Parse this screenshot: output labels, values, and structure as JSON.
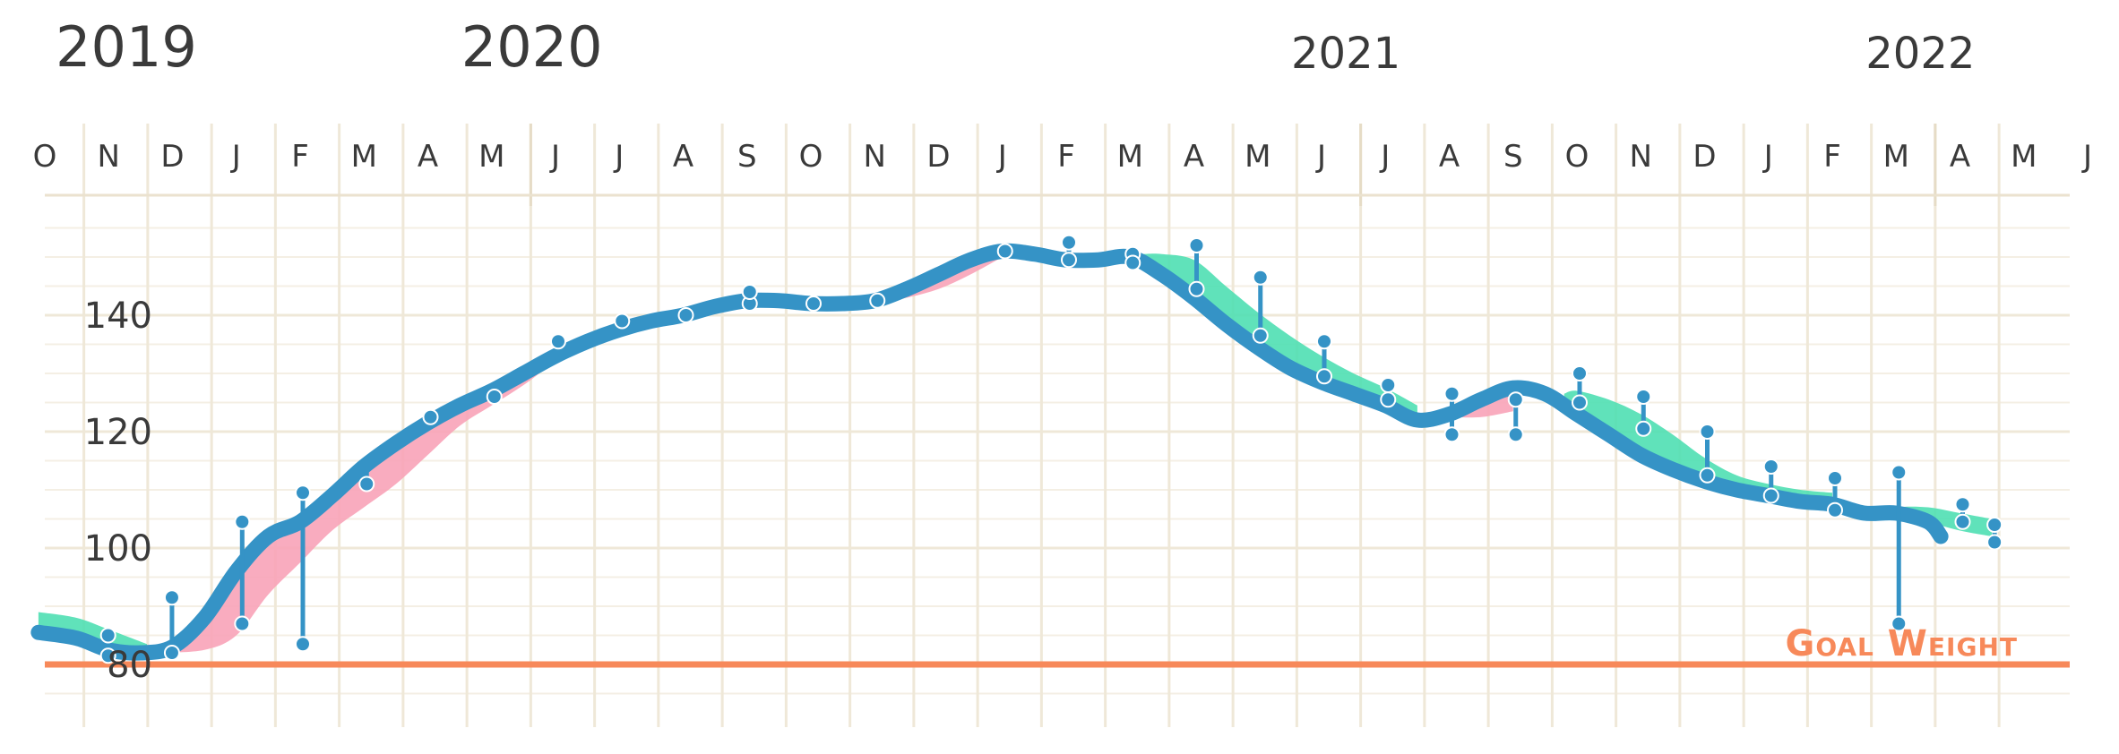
{
  "chart_data": {
    "type": "line",
    "title": "",
    "xlabel": "",
    "ylabel": "",
    "years": [
      {
        "label": "2019",
        "month_index": 0
      },
      {
        "label": "2020",
        "month_index": 7
      },
      {
        "label": "2021",
        "month_index": 20
      },
      {
        "label": "2022",
        "month_index": 29
      }
    ],
    "month_ticks": [
      "O",
      "N",
      "D",
      "J",
      "F",
      "M",
      "A",
      "M",
      "J",
      "J",
      "A",
      "S",
      "O",
      "N",
      "D",
      "J",
      "F",
      "M",
      "A",
      "M",
      "J",
      "J",
      "A",
      "S",
      "O",
      "N",
      "D",
      "J",
      "F",
      "M",
      "A",
      "M",
      "J"
    ],
    "y_ticks": [
      80,
      100,
      120,
      140
    ],
    "ylim": [
      70,
      160
    ],
    "goal": {
      "label": "Goal Weight",
      "value": 80
    },
    "colors": {
      "trend": "#3593c6",
      "gain_band": "#f8a3b8",
      "loss_band": "#4fdfb3",
      "goal_line": "#f7895a",
      "grid": "#efe8d8"
    },
    "series": [
      {
        "name": "",
        "role": "trend",
        "points": [
          [
            -0.1,
            85.5
          ],
          [
            0.5,
            84.5
          ],
          [
            1.0,
            82.5
          ],
          [
            1.5,
            82.0
          ],
          [
            2.0,
            83.0
          ],
          [
            2.5,
            88.0
          ],
          [
            3.0,
            96.0
          ],
          [
            3.5,
            102.0
          ],
          [
            4.0,
            104.5
          ],
          [
            4.5,
            109.0
          ],
          [
            5.0,
            114.0
          ],
          [
            5.5,
            118.0
          ],
          [
            6.0,
            121.5
          ],
          [
            6.5,
            124.5
          ],
          [
            7.0,
            127.0
          ],
          [
            7.5,
            130.0
          ],
          [
            8.0,
            133.0
          ],
          [
            8.5,
            135.5
          ],
          [
            9.0,
            137.5
          ],
          [
            9.5,
            139.0
          ],
          [
            10.0,
            140.0
          ],
          [
            10.5,
            141.5
          ],
          [
            11.0,
            142.5
          ],
          [
            11.5,
            142.5
          ],
          [
            12.0,
            142.0
          ],
          [
            12.5,
            142.0
          ],
          [
            13.0,
            142.5
          ],
          [
            13.5,
            144.5
          ],
          [
            14.0,
            147.0
          ],
          [
            14.5,
            149.5
          ],
          [
            15.0,
            151.0
          ],
          [
            15.5,
            150.5
          ],
          [
            16.0,
            149.5
          ],
          [
            16.5,
            149.5
          ],
          [
            17.0,
            150.0
          ],
          [
            17.5,
            147.0
          ],
          [
            18.0,
            143.0
          ],
          [
            18.5,
            138.5
          ],
          [
            19.0,
            134.5
          ],
          [
            19.5,
            131.0
          ],
          [
            20.0,
            128.5
          ],
          [
            20.5,
            126.5
          ],
          [
            21.0,
            124.5
          ],
          [
            21.5,
            122.0
          ],
          [
            22.0,
            123.0
          ],
          [
            22.5,
            125.5
          ],
          [
            23.0,
            127.5
          ],
          [
            23.5,
            126.5
          ],
          [
            24.0,
            123.0
          ],
          [
            24.5,
            119.5
          ],
          [
            25.0,
            116.0
          ],
          [
            25.5,
            113.5
          ],
          [
            26.0,
            111.5
          ],
          [
            26.5,
            110.0
          ],
          [
            27.0,
            109.0
          ],
          [
            27.5,
            108.0
          ],
          [
            28.0,
            107.5
          ],
          [
            28.5,
            106.0
          ],
          [
            29.0,
            106.0
          ],
          [
            29.5,
            104.5
          ],
          [
            29.7,
            102.0
          ]
        ]
      },
      {
        "name": "",
        "role": "measurement",
        "points": [
          [
            0.95,
            85.0
          ],
          [
            0.95,
            81.5
          ],
          [
            1.95,
            91.5
          ],
          [
            1.95,
            82.0
          ],
          [
            3.05,
            104.5
          ],
          [
            3.05,
            87.0
          ],
          [
            4.0,
            109.5
          ],
          [
            4.0,
            83.5
          ],
          [
            5.0,
            111.0
          ],
          [
            6.0,
            122.5
          ],
          [
            7.0,
            126.0
          ],
          [
            8.0,
            135.5
          ],
          [
            9.0,
            139.0
          ],
          [
            10.0,
            140.0
          ],
          [
            11.0,
            142.0
          ],
          [
            11.0,
            144.0
          ],
          [
            12.0,
            142.0
          ],
          [
            13.0,
            142.5
          ],
          [
            15.0,
            151.0
          ],
          [
            16.0,
            152.5
          ],
          [
            16.0,
            149.5
          ],
          [
            17.0,
            150.5
          ],
          [
            17.0,
            149.0
          ],
          [
            18.0,
            152.0
          ],
          [
            18.0,
            144.5
          ],
          [
            19.0,
            146.5
          ],
          [
            19.0,
            136.5
          ],
          [
            20.0,
            135.5
          ],
          [
            20.0,
            129.5
          ],
          [
            21.0,
            128.0
          ],
          [
            21.0,
            125.5
          ],
          [
            22.0,
            126.5
          ],
          [
            22.0,
            119.5
          ],
          [
            23.0,
            125.5
          ],
          [
            23.0,
            119.5
          ],
          [
            24.0,
            130.0
          ],
          [
            24.0,
            125.0
          ],
          [
            25.0,
            126.0
          ],
          [
            25.0,
            120.5
          ],
          [
            26.0,
            120.0
          ],
          [
            26.0,
            112.5
          ],
          [
            27.0,
            114.0
          ],
          [
            27.0,
            109.0
          ],
          [
            28.0,
            112.0
          ],
          [
            28.0,
            106.5
          ],
          [
            29.0,
            113.0
          ],
          [
            29.0,
            87.0
          ],
          [
            30.0,
            107.5
          ],
          [
            30.0,
            104.5
          ],
          [
            30.5,
            104.0
          ],
          [
            30.5,
            101.0
          ]
        ]
      }
    ],
    "error_bars": [
      [
        0.95,
        85.0,
        81.5
      ],
      [
        1.95,
        91.5,
        82.0
      ],
      [
        3.05,
        104.5,
        87.0
      ],
      [
        4.0,
        109.5,
        83.5
      ],
      [
        5.0,
        113.0,
        111.0
      ],
      [
        11.0,
        144.0,
        142.0
      ],
      [
        16.0,
        152.5,
        149.5
      ],
      [
        17.0,
        150.5,
        149.0
      ],
      [
        18.0,
        152.0,
        144.5
      ],
      [
        19.0,
        146.5,
        136.5
      ],
      [
        20.0,
        135.5,
        129.5
      ],
      [
        21.0,
        128.0,
        125.5
      ],
      [
        22.0,
        126.5,
        119.5
      ],
      [
        23.0,
        125.5,
        119.5
      ],
      [
        24.0,
        130.0,
        125.0
      ],
      [
        25.0,
        126.0,
        120.5
      ],
      [
        26.0,
        120.0,
        112.5
      ],
      [
        27.0,
        114.0,
        109.0
      ],
      [
        28.0,
        112.0,
        106.5
      ],
      [
        29.0,
        113.0,
        87.0
      ],
      [
        30.0,
        107.5,
        104.5
      ],
      [
        30.5,
        104.0,
        101.0
      ]
    ],
    "bands": [
      {
        "role": "gain",
        "upper": [
          [
            1.8,
            83.0
          ],
          [
            2.5,
            88.0
          ],
          [
            3.0,
            96.0
          ],
          [
            3.5,
            102.0
          ],
          [
            4.0,
            104.5
          ],
          [
            4.5,
            109.0
          ],
          [
            5.0,
            114.0
          ],
          [
            5.5,
            118.0
          ],
          [
            6.0,
            121.5
          ],
          [
            6.5,
            124.5
          ],
          [
            7.0,
            127.0
          ],
          [
            7.5,
            130.0
          ],
          [
            8.0,
            133.0
          ],
          [
            8.5,
            135.5
          ],
          [
            9.0,
            137.5
          ],
          [
            9.5,
            139.0
          ],
          [
            10.0,
            140.0
          ],
          [
            10.5,
            141.5
          ],
          [
            11.0,
            142.5
          ]
        ],
        "lower": [
          [
            1.8,
            82.0
          ],
          [
            2.5,
            82.5
          ],
          [
            3.0,
            85.0
          ],
          [
            3.5,
            92.0
          ],
          [
            4.0,
            97.5
          ],
          [
            4.5,
            103.0
          ],
          [
            5.0,
            107.0
          ],
          [
            5.5,
            111.0
          ],
          [
            6.0,
            116.0
          ],
          [
            6.5,
            121.0
          ],
          [
            7.0,
            124.5
          ],
          [
            7.5,
            128.0
          ],
          [
            8.0,
            132.0
          ],
          [
            8.5,
            135.0
          ],
          [
            9.0,
            137.0
          ],
          [
            9.5,
            138.5
          ],
          [
            10.0,
            139.5
          ],
          [
            10.5,
            141.0
          ],
          [
            11.0,
            142.0
          ]
        ]
      },
      {
        "role": "gain",
        "upper": [
          [
            13.0,
            142.5
          ],
          [
            13.5,
            144.5
          ],
          [
            14.0,
            147.0
          ],
          [
            14.5,
            149.5
          ],
          [
            15.0,
            151.0
          ]
        ],
        "lower": [
          [
            13.0,
            142.0
          ],
          [
            13.5,
            143.0
          ],
          [
            14.0,
            144.5
          ],
          [
            14.5,
            147.0
          ],
          [
            15.0,
            150.0
          ]
        ]
      },
      {
        "role": "gain",
        "upper": [
          [
            22.0,
            123.0
          ],
          [
            22.5,
            125.5
          ],
          [
            23.0,
            127.5
          ]
        ],
        "lower": [
          [
            22.0,
            122.5
          ],
          [
            22.5,
            122.5
          ],
          [
            23.0,
            123.5
          ]
        ]
      },
      {
        "role": "loss",
        "upper": [
          [
            17.2,
            150.5
          ],
          [
            17.5,
            150.5
          ],
          [
            18.0,
            149.5
          ],
          [
            18.5,
            145.0
          ],
          [
            19.0,
            140.5
          ],
          [
            19.5,
            136.5
          ],
          [
            20.0,
            133.0
          ],
          [
            20.5,
            130.0
          ],
          [
            21.0,
            127.5
          ],
          [
            21.5,
            124.5
          ]
        ],
        "lower": [
          [
            17.2,
            149.5
          ],
          [
            17.5,
            147.0
          ],
          [
            18.0,
            143.0
          ],
          [
            18.5,
            138.5
          ],
          [
            19.0,
            134.5
          ],
          [
            19.5,
            131.0
          ],
          [
            20.0,
            128.5
          ],
          [
            20.5,
            126.5
          ],
          [
            21.0,
            124.5
          ],
          [
            21.5,
            122.0
          ]
        ]
      },
      {
        "role": "loss",
        "upper": [
          [
            23.8,
            126.5
          ],
          [
            24.0,
            127.0
          ],
          [
            24.5,
            125.5
          ],
          [
            25.0,
            123.0
          ],
          [
            25.5,
            119.5
          ],
          [
            26.0,
            115.5
          ],
          [
            26.5,
            112.5
          ],
          [
            27.0,
            111.0
          ],
          [
            27.5,
            110.0
          ],
          [
            28.0,
            109.5
          ]
        ],
        "lower": [
          [
            23.8,
            124.5
          ],
          [
            24.0,
            123.0
          ],
          [
            24.5,
            119.5
          ],
          [
            25.0,
            116.0
          ],
          [
            25.5,
            113.5
          ],
          [
            26.0,
            111.5
          ],
          [
            26.5,
            110.0
          ],
          [
            27.0,
            109.0
          ],
          [
            27.5,
            108.0
          ],
          [
            28.0,
            107.5
          ]
        ]
      },
      {
        "role": "loss",
        "upper": [
          [
            28.6,
            106.0
          ],
          [
            29.0,
            107.0
          ],
          [
            29.5,
            107.0
          ],
          [
            30.0,
            106.0
          ],
          [
            30.5,
            105.0
          ]
        ],
        "lower": [
          [
            28.6,
            106.0
          ],
          [
            29.0,
            106.0
          ],
          [
            29.5,
            104.5
          ],
          [
            30.0,
            103.0
          ],
          [
            30.5,
            102.0
          ]
        ]
      },
      {
        "role": "loss",
        "upper": [
          [
            -0.1,
            89.0
          ],
          [
            0.5,
            88.0
          ],
          [
            1.0,
            86.0
          ],
          [
            1.6,
            83.5
          ]
        ],
        "lower": [
          [
            -0.1,
            85.5
          ],
          [
            0.5,
            84.5
          ],
          [
            1.0,
            82.5
          ],
          [
            1.6,
            82.0
          ]
        ]
      }
    ],
    "grid": true,
    "legend": "none"
  }
}
